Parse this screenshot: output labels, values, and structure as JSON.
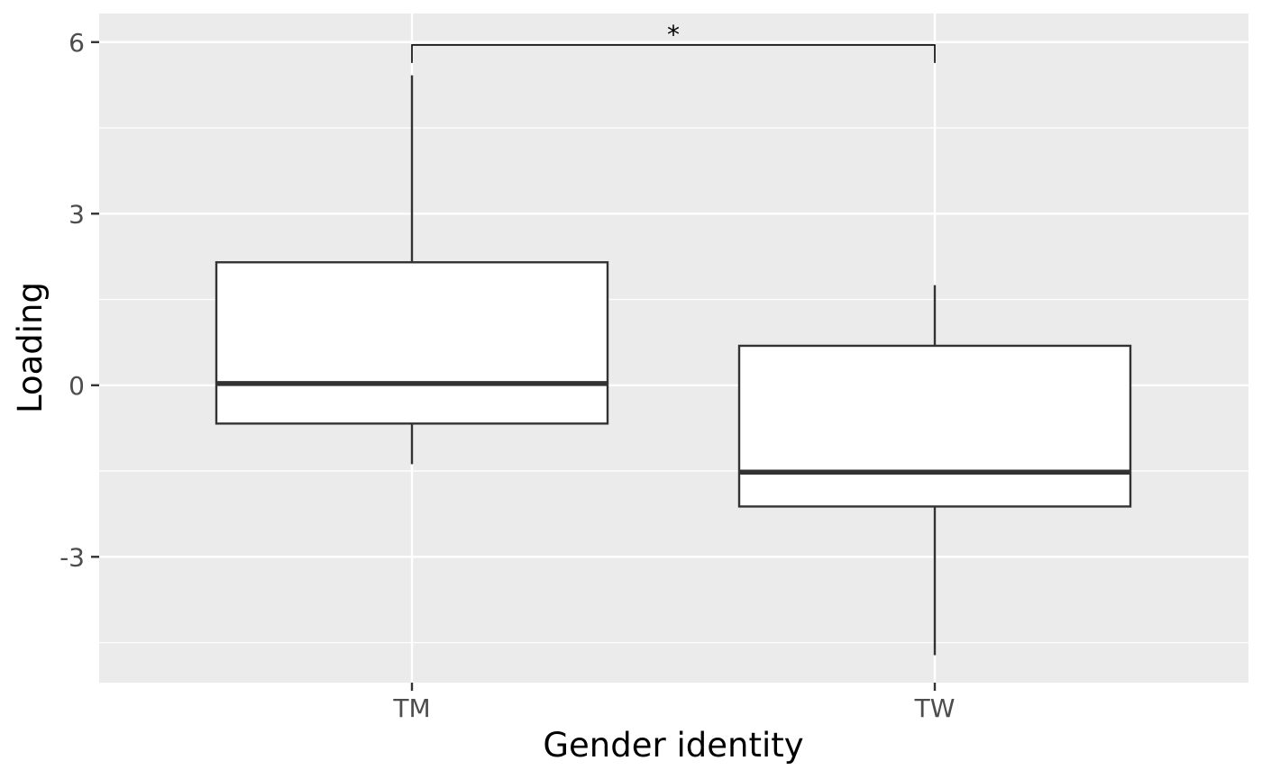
{
  "chart_data": {
    "type": "boxplot",
    "xlabel": "Gender identity",
    "ylabel": "Loading",
    "categories": [
      "TM",
      "TW"
    ],
    "boxes": [
      {
        "category": "TM",
        "whisker_low": -1.38,
        "q1": -0.67,
        "median": 0.03,
        "q3": 2.15,
        "whisker_high": 5.42
      },
      {
        "category": "TW",
        "whisker_low": -4.72,
        "q1": -2.12,
        "median": -1.52,
        "q3": 0.69,
        "whisker_high": 1.75
      }
    ],
    "ylim": [
      -5.2,
      6.5
    ],
    "y_ticks": [
      {
        "value": -3,
        "label": "-3"
      },
      {
        "value": 0,
        "label": "0"
      },
      {
        "value": 3,
        "label": "3"
      },
      {
        "value": 6,
        "label": "6"
      }
    ],
    "grid": true,
    "significance": {
      "from": "TM",
      "to": "TW",
      "y": 5.95,
      "label": "*"
    },
    "colors": {
      "panel_background": "#ebebeb",
      "grid": "#ffffff",
      "box_fill": "#ffffff",
      "box_line": "#333333",
      "text": "#4d4d4d"
    }
  }
}
